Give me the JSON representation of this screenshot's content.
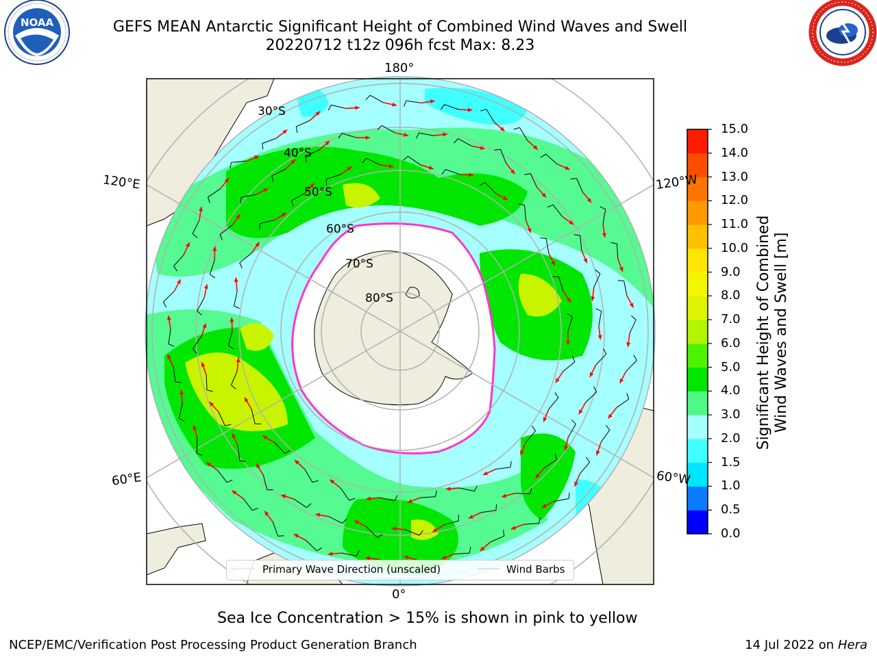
{
  "title": {
    "line1": "GEFS MEAN Antarctic Significant Height of Combined Wind Waves and Swell",
    "line2": "20220712 t12z 096h fcst   Max: 8.23"
  },
  "logos": {
    "noara_text": "NOAA",
    "noaa_ring": "NATIONAL OCEANIC AND ATMOSPHERIC ADMINISTRATION · U.S. DEPARTMENT OF COMMERCE",
    "nws_ring": "NATIONAL WEATHER SERVICE"
  },
  "map": {
    "projection": "south polar stereographic",
    "lon_labels": {
      "top": "180°",
      "bottom": "0°",
      "upper_left": "120°E",
      "upper_right": "120°W",
      "lower_left": "60°E",
      "lower_right": "60°W"
    },
    "lat_labels": [
      "30°S",
      "40°S",
      "50°S",
      "60°S",
      "70°S",
      "80°S"
    ],
    "colors": {
      "land": "#efedde",
      "sea_ice": "#ffffff",
      "ice_edge": "#ff33cc",
      "wave_arrow": "#ff0000",
      "wind_barb": "#000000",
      "grid": "#b0b0b0"
    }
  },
  "legend": {
    "wave_direction": "Primary Wave Direction (unscaled)",
    "wind_barbs": "Wind Barbs"
  },
  "colorbar": {
    "title_line1": "Significant Height of Combined",
    "title_line2": "Wind Waves and Swell [m]",
    "ticks": [
      "0.0",
      "0.5",
      "1.0",
      "1.5",
      "2.0",
      "3.0",
      "4.0",
      "5.0",
      "6.0",
      "7.0",
      "8.0",
      "9.0",
      "10.0",
      "11.0",
      "12.0",
      "13.0",
      "14.0",
      "15.0"
    ],
    "colors": [
      "#0000ff",
      "#0a7cff",
      "#00e5ff",
      "#40ffff",
      "#a6ffff",
      "#4dfa85",
      "#00e600",
      "#4df400",
      "#b3f400",
      "#dcf400",
      "#f5f500",
      "#ffe500",
      "#ffc000",
      "#ff9900",
      "#ff7300",
      "#ff4d00",
      "#ff1a00"
    ]
  },
  "caption": "Sea Ice Concentration > 15% is shown in pink to yellow",
  "footer": {
    "left": "NCEP/EMC/Verification Post Processing Product Generation Branch",
    "date": "14 Jul 2022 on ",
    "machine": "Hera"
  }
}
